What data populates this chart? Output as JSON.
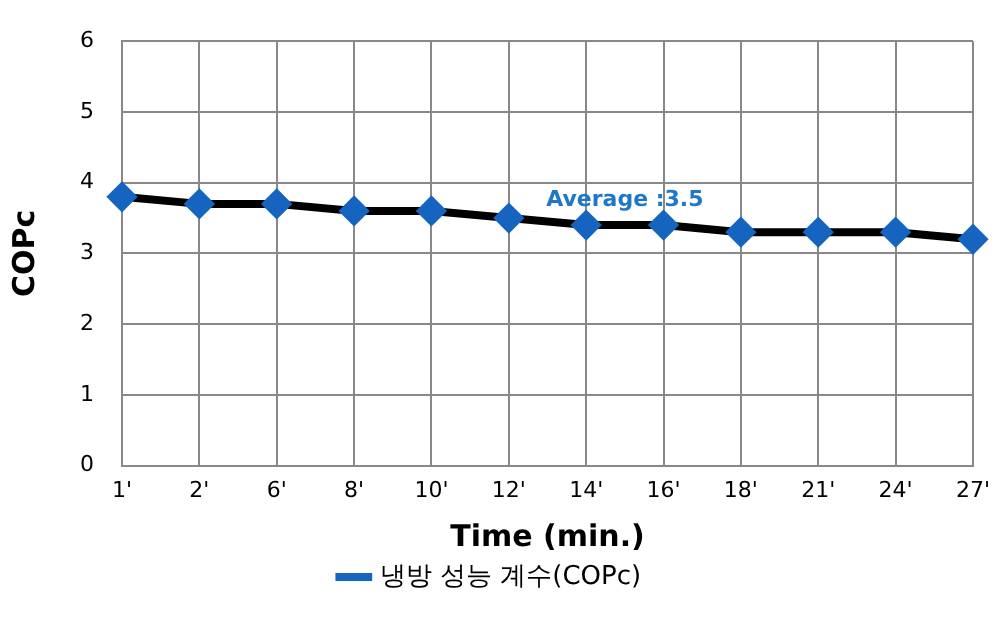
{
  "chart_data": {
    "type": "line",
    "xlabel": "Time (min.)",
    "ylabel": "COPc",
    "categories": [
      "1'",
      "2'",
      "6'",
      "8'",
      "10'",
      "12'",
      "14'",
      "16'",
      "18'",
      "21'",
      "24'",
      "27'"
    ],
    "series": [
      {
        "name": "냉방 성능 계수(COPc)",
        "color": "#1565c0",
        "values": [
          3.8,
          3.7,
          3.7,
          3.6,
          3.6,
          3.5,
          3.4,
          3.4,
          3.3,
          3.3,
          3.3,
          3.2
        ]
      }
    ],
    "ylim": [
      0,
      6
    ],
    "yticks": [
      0,
      1,
      2,
      3,
      4,
      5,
      6
    ],
    "grid": true,
    "legend": "bottom",
    "marker": "diamond",
    "line_style": "solid",
    "annotations": [
      "Average :3.5"
    ]
  }
}
